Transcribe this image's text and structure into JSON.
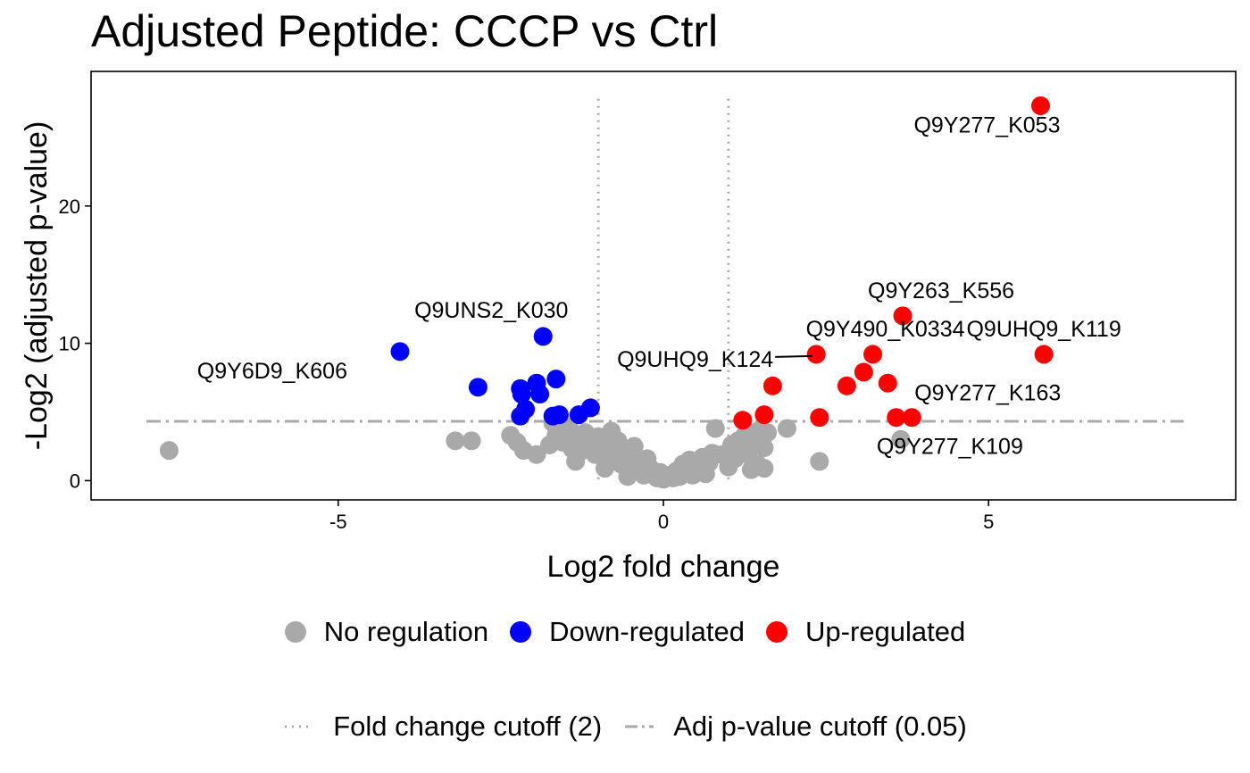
{
  "chart_data": {
    "type": "scatter",
    "title": "Adjusted Peptide: CCCP vs Ctrl",
    "xlabel": "Log2 fold change",
    "ylabel": "-Log2 (adjusted p-value)",
    "xlim": [
      -8.8,
      8.8
    ],
    "ylim": [
      -1.4,
      29.8
    ],
    "x_ticks": [
      -5,
      0,
      5
    ],
    "y_ticks": [
      0,
      10,
      20
    ],
    "grid": false,
    "legend_position": "bottom",
    "colors": {
      "none": "#a9a9a9",
      "down": "#0000ff",
      "up": "#ff0000",
      "cutoff": "#a9a9a9"
    },
    "fold_change_cutoff": [
      -1,
      1
    ],
    "pvalue_cutoff_y": 4.32,
    "series": [
      {
        "name": "No regulation",
        "color": "#a9a9a9",
        "points": [
          [
            -7.6,
            2.2
          ],
          [
            -3.2,
            2.9
          ],
          [
            -2.95,
            2.9
          ],
          [
            -2.35,
            3.3
          ],
          [
            -2.25,
            2.8
          ],
          [
            -2.15,
            2.2
          ],
          [
            -1.95,
            1.9
          ],
          [
            -1.7,
            4.2
          ],
          [
            -1.75,
            2.6
          ],
          [
            -1.65,
            3.3
          ],
          [
            -1.55,
            2.8
          ],
          [
            -1.45,
            3.9
          ],
          [
            -1.4,
            2.3
          ],
          [
            -1.35,
            1.4
          ],
          [
            -1.3,
            3.0
          ],
          [
            -1.25,
            2.2
          ],
          [
            -1.2,
            3.5
          ],
          [
            -1.15,
            2.6
          ],
          [
            -1.05,
            1.9
          ],
          [
            -1.0,
            3.2
          ],
          [
            -0.95,
            2.5
          ],
          [
            -0.9,
            0.9
          ],
          [
            -0.85,
            2.0
          ],
          [
            -0.8,
            3.6
          ],
          [
            -0.75,
            1.6
          ],
          [
            -0.7,
            2.9
          ],
          [
            -0.65,
            1.2
          ],
          [
            -0.6,
            2.3
          ],
          [
            -0.55,
            0.3
          ],
          [
            -0.5,
            1.7
          ],
          [
            -0.45,
            2.5
          ],
          [
            -0.4,
            0.8
          ],
          [
            -0.35,
            1.1
          ],
          [
            -0.3,
            0.4
          ],
          [
            -0.25,
            1.6
          ],
          [
            -0.2,
            0.9
          ],
          [
            -0.15,
            0.5
          ],
          [
            -0.1,
            0.2
          ],
          [
            -0.05,
            0.6
          ],
          [
            0.0,
            0.1
          ],
          [
            0.05,
            0.3
          ],
          [
            0.1,
            0.4
          ],
          [
            0.15,
            0.2
          ],
          [
            0.2,
            0.7
          ],
          [
            0.25,
            0.3
          ],
          [
            0.3,
            1.2
          ],
          [
            0.35,
            0.6
          ],
          [
            0.4,
            1.5
          ],
          [
            0.45,
            0.4
          ],
          [
            0.5,
            1.0
          ],
          [
            0.55,
            0.7
          ],
          [
            0.6,
            1.7
          ],
          [
            0.65,
            0.5
          ],
          [
            0.7,
            1.3
          ],
          [
            0.75,
            2.0
          ],
          [
            0.8,
            3.8
          ],
          [
            0.9,
            1.9
          ],
          [
            1.0,
            1.0
          ],
          [
            1.05,
            2.6
          ],
          [
            1.1,
            1.6
          ],
          [
            1.15,
            2.9
          ],
          [
            1.2,
            2.2
          ],
          [
            1.25,
            3.3
          ],
          [
            1.3,
            1.9
          ],
          [
            1.35,
            0.8
          ],
          [
            1.4,
            2.6
          ],
          [
            1.45,
            1.2
          ],
          [
            1.5,
            3.1
          ],
          [
            1.55,
            2.4
          ],
          [
            1.6,
            3.5
          ],
          [
            1.45,
            3.6
          ],
          [
            1.55,
            0.9
          ],
          [
            1.9,
            3.8
          ],
          [
            2.4,
            1.4
          ],
          [
            3.65,
            3.0
          ]
        ]
      },
      {
        "name": "Down-regulated",
        "color": "#0000ff",
        "points": [
          [
            -4.05,
            9.4
          ],
          [
            -2.85,
            6.8
          ],
          [
            -2.2,
            6.7
          ],
          [
            -2.18,
            6.3
          ],
          [
            -2.2,
            4.7
          ],
          [
            -2.12,
            5.2
          ],
          [
            -1.95,
            7.1
          ],
          [
            -1.9,
            6.3
          ],
          [
            -1.85,
            10.5
          ],
          [
            -1.65,
            7.4
          ],
          [
            -1.7,
            4.7
          ],
          [
            -1.6,
            4.8
          ],
          [
            -1.3,
            4.8
          ],
          [
            -1.12,
            5.3
          ]
        ]
      },
      {
        "name": "Up-regulated",
        "color": "#ff0000",
        "points": [
          [
            5.8,
            27.3
          ],
          [
            3.68,
            12.0
          ],
          [
            3.22,
            9.2
          ],
          [
            2.35,
            9.2
          ],
          [
            5.85,
            9.2
          ],
          [
            3.08,
            7.9
          ],
          [
            2.82,
            6.9
          ],
          [
            3.45,
            7.1
          ],
          [
            1.68,
            6.9
          ],
          [
            1.22,
            4.4
          ],
          [
            1.55,
            4.8
          ],
          [
            2.4,
            4.6
          ],
          [
            3.58,
            4.6
          ],
          [
            3.82,
            4.6
          ]
        ]
      }
    ],
    "annotations": [
      {
        "text": "Q9Y277_K053",
        "x": 5.8,
        "y": 27.3
      },
      {
        "text": "Q9Y263_K556",
        "x": 3.68,
        "y": 12.0
      },
      {
        "text": "Q9UNS2_K030",
        "x": -1.85,
        "y": 10.5
      },
      {
        "text": "Q9Y490_K0334",
        "x": 3.22,
        "y": 9.2
      },
      {
        "text": "Q9UHQ9_K119",
        "x": 5.85,
        "y": 9.2
      },
      {
        "text": "Q9UHQ9_K124",
        "x": 2.35,
        "y": 9.2
      },
      {
        "text": "Q9Y6D9_K606",
        "x": -4.05,
        "y": 9.4
      },
      {
        "text": "Q9Y277_K163",
        "x": 3.82,
        "y": 4.6
      },
      {
        "text": "Q9Y277_K109",
        "x": 3.65,
        "y": 3.0
      }
    ]
  },
  "legend": {
    "points": [
      {
        "label": "No regulation",
        "color": "#a9a9a9"
      },
      {
        "label": "Down-regulated",
        "color": "#0000ff"
      },
      {
        "label": "Up-regulated",
        "color": "#ff0000"
      }
    ],
    "lines": [
      {
        "label": "Fold change cutoff (2)",
        "style": "dotted"
      },
      {
        "label": "Adj p-value cutoff (0.05)",
        "style": "dashdot"
      }
    ]
  }
}
